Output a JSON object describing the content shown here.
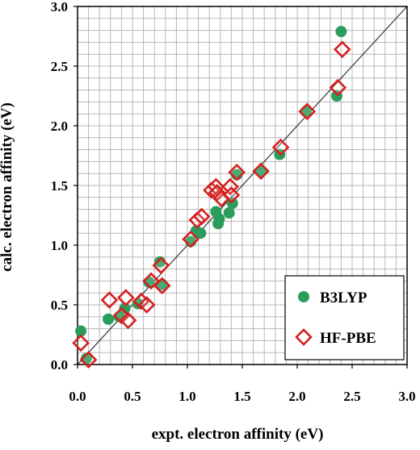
{
  "chart_data": {
    "type": "scatter",
    "xlabel": "expt. electron affinity (eV)",
    "ylabel": "calc. electron affinity (eV)",
    "xlim": [
      0.0,
      3.0
    ],
    "ylim": [
      0.0,
      3.0
    ],
    "x_ticks": [
      "0.0",
      "0.5",
      "1.0",
      "1.5",
      "2.0",
      "2.5",
      "3.0"
    ],
    "y_ticks": [
      "0.0",
      "0.5",
      "1.0",
      "1.5",
      "2.0",
      "2.5",
      "3.0"
    ],
    "grid": true,
    "minor_grid_step": 0.1,
    "diagonal_line": true,
    "legend_position": "bottom-right",
    "series": [
      {
        "name": "B3LYP",
        "marker": "filled-circle",
        "color": "#2a9d5c",
        "points": [
          [
            0.03,
            0.28
          ],
          [
            0.08,
            0.05
          ],
          [
            0.28,
            0.38
          ],
          [
            0.38,
            0.4
          ],
          [
            0.43,
            0.47
          ],
          [
            0.55,
            0.51
          ],
          [
            0.65,
            0.69
          ],
          [
            0.75,
            0.86
          ],
          [
            0.77,
            0.67
          ],
          [
            1.03,
            1.03
          ],
          [
            1.08,
            1.12
          ],
          [
            1.12,
            1.1
          ],
          [
            1.26,
            1.28
          ],
          [
            1.28,
            1.18
          ],
          [
            1.29,
            1.22
          ],
          [
            1.38,
            1.27
          ],
          [
            1.41,
            1.35
          ],
          [
            1.45,
            1.59
          ],
          [
            1.67,
            1.62
          ],
          [
            1.84,
            1.76
          ],
          [
            2.08,
            2.12
          ],
          [
            2.36,
            2.25
          ],
          [
            2.4,
            2.79
          ]
        ]
      },
      {
        "name": "HF-PBE",
        "marker": "open-diamond",
        "color": "#d62020",
        "points": [
          [
            0.03,
            0.18
          ],
          [
            0.1,
            0.04
          ],
          [
            0.29,
            0.54
          ],
          [
            0.4,
            0.41
          ],
          [
            0.44,
            0.56
          ],
          [
            0.46,
            0.37
          ],
          [
            0.58,
            0.53
          ],
          [
            0.63,
            0.5
          ],
          [
            0.67,
            0.7
          ],
          [
            0.76,
            0.83
          ],
          [
            0.77,
            0.66
          ],
          [
            1.03,
            1.05
          ],
          [
            1.09,
            1.21
          ],
          [
            1.13,
            1.24
          ],
          [
            1.22,
            1.46
          ],
          [
            1.26,
            1.49
          ],
          [
            1.27,
            1.44
          ],
          [
            1.31,
            1.39
          ],
          [
            1.39,
            1.49
          ],
          [
            1.4,
            1.42
          ],
          [
            1.45,
            1.61
          ],
          [
            1.67,
            1.62
          ],
          [
            1.85,
            1.82
          ],
          [
            2.09,
            2.12
          ],
          [
            2.37,
            2.32
          ],
          [
            2.41,
            2.64
          ]
        ]
      }
    ]
  },
  "colors": {
    "grid": "#b7b7b7",
    "frame": "#000000",
    "diagonal": "#333333",
    "b3lyp": "#2a9d5c",
    "hfpbe": "#d62020"
  }
}
